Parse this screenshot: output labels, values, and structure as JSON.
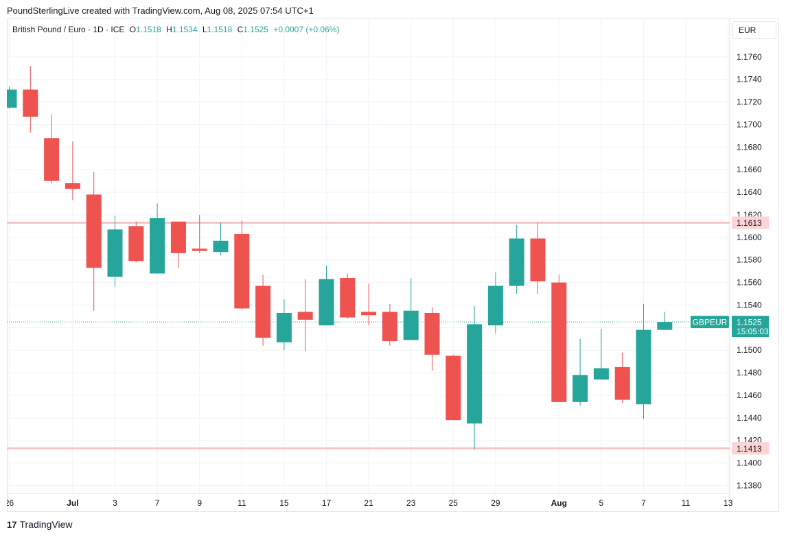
{
  "header": {
    "attribution": "PoundSterlingLive created with TradingView.com, Aug 08, 2025 07:54 UTC+1"
  },
  "legend": {
    "symbol": "British Pound / Euro · 1D · ICE",
    "open_label": "O",
    "open": "1.1518",
    "high_label": "H",
    "high": "1.1534",
    "low_label": "L",
    "low": "1.1518",
    "close_label": "C",
    "close": "1.1525",
    "change": "+0.0007 (+0.06%)"
  },
  "currency": "EUR",
  "footer": {
    "logo_mark": "17",
    "logo_text": "TradingView"
  },
  "colors": {
    "up": "#26a69a",
    "down": "#ef5350",
    "level_line": "#f7c5c5",
    "level_label_bg": "#fcd4d4",
    "grid": "#f0f3fa"
  },
  "chart_data": {
    "type": "candlestick",
    "symbol": "GBPEUR",
    "ylim": [
      1.138,
      1.178
    ],
    "y_ticks": [
      "1.1380",
      "1.1400",
      "1.1420",
      "1.1440",
      "1.1460",
      "1.1480",
      "1.1500",
      "1.1520",
      "1.1540",
      "1.1560",
      "1.1580",
      "1.1600",
      "1.1620",
      "1.1640",
      "1.1660",
      "1.1680",
      "1.1700",
      "1.1720",
      "1.1740",
      "1.1760"
    ],
    "x_ticks": [
      {
        "index": 0,
        "label": "26"
      },
      {
        "index": 3,
        "label": "Jul"
      },
      {
        "index": 5,
        "label": "3"
      },
      {
        "index": 7,
        "label": "7"
      },
      {
        "index": 9,
        "label": "9"
      },
      {
        "index": 11,
        "label": "11"
      },
      {
        "index": 13,
        "label": "15"
      },
      {
        "index": 15,
        "label": "17"
      },
      {
        "index": 17,
        "label": "21"
      },
      {
        "index": 19,
        "label": "23"
      },
      {
        "index": 21,
        "label": "25"
      },
      {
        "index": 23,
        "label": "29"
      },
      {
        "index": 26,
        "label": "Aug"
      },
      {
        "index": 28,
        "label": "5"
      },
      {
        "index": 30,
        "label": "7"
      },
      {
        "index": 32,
        "label": "11"
      },
      {
        "index": 34,
        "label": "13"
      }
    ],
    "candles": [
      {
        "open": 1.1715,
        "high": 1.1734,
        "low": 1.1714,
        "close": 1.1731
      },
      {
        "open": 1.1731,
        "high": 1.1752,
        "low": 1.1693,
        "close": 1.1707
      },
      {
        "open": 1.1688,
        "high": 1.1709,
        "low": 1.1648,
        "close": 1.165
      },
      {
        "open": 1.1648,
        "high": 1.1685,
        "low": 1.1633,
        "close": 1.1643
      },
      {
        "open": 1.1638,
        "high": 1.1658,
        "low": 1.1535,
        "close": 1.1573
      },
      {
        "open": 1.1565,
        "high": 1.1619,
        "low": 1.1556,
        "close": 1.1607
      },
      {
        "open": 1.161,
        "high": 1.1614,
        "low": 1.1578,
        "close": 1.1579
      },
      {
        "open": 1.1568,
        "high": 1.163,
        "low": 1.1568,
        "close": 1.1617
      },
      {
        "open": 1.1614,
        "high": 1.1614,
        "low": 1.1573,
        "close": 1.1586
      },
      {
        "open": 1.159,
        "high": 1.162,
        "low": 1.1586,
        "close": 1.1588
      },
      {
        "open": 1.1587,
        "high": 1.1613,
        "low": 1.1584,
        "close": 1.1597
      },
      {
        "open": 1.1603,
        "high": 1.1615,
        "low": 1.1536,
        "close": 1.1537
      },
      {
        "open": 1.1557,
        "high": 1.1567,
        "low": 1.1504,
        "close": 1.1511
      },
      {
        "open": 1.1507,
        "high": 1.1545,
        "low": 1.15,
        "close": 1.1533
      },
      {
        "open": 1.1534,
        "high": 1.1563,
        "low": 1.1499,
        "close": 1.1527
      },
      {
        "open": 1.1522,
        "high": 1.1575,
        "low": 1.1522,
        "close": 1.1563
      },
      {
        "open": 1.1564,
        "high": 1.1568,
        "low": 1.1528,
        "close": 1.1529
      },
      {
        "open": 1.1534,
        "high": 1.1559,
        "low": 1.1522,
        "close": 1.1531
      },
      {
        "open": 1.1534,
        "high": 1.1541,
        "low": 1.1504,
        "close": 1.1508
      },
      {
        "open": 1.1509,
        "high": 1.1564,
        "low": 1.1509,
        "close": 1.1535
      },
      {
        "open": 1.1533,
        "high": 1.1538,
        "low": 1.1482,
        "close": 1.1496
      },
      {
        "open": 1.1495,
        "high": 1.1496,
        "low": 1.1438,
        "close": 1.1438
      },
      {
        "open": 1.1435,
        "high": 1.1539,
        "low": 1.1412,
        "close": 1.1523
      },
      {
        "open": 1.1522,
        "high": 1.1569,
        "low": 1.1515,
        "close": 1.1557
      },
      {
        "open": 1.1557,
        "high": 1.1611,
        "low": 1.155,
        "close": 1.1599
      },
      {
        "open": 1.1599,
        "high": 1.1613,
        "low": 1.155,
        "close": 1.1561
      },
      {
        "open": 1.156,
        "high": 1.1567,
        "low": 1.1454,
        "close": 1.1454
      },
      {
        "open": 1.1454,
        "high": 1.151,
        "low": 1.1451,
        "close": 1.1478
      },
      {
        "open": 1.1474,
        "high": 1.1519,
        "low": 1.1474,
        "close": 1.1484
      },
      {
        "open": 1.1485,
        "high": 1.1498,
        "low": 1.1453,
        "close": 1.1456
      },
      {
        "open": 1.1452,
        "high": 1.1541,
        "low": 1.1439,
        "close": 1.1518
      },
      {
        "open": 1.1518,
        "high": 1.1534,
        "low": 1.1518,
        "close": 1.1525
      }
    ],
    "levels": [
      {
        "value": 1.1613,
        "label": "1.1613"
      },
      {
        "value": 1.1413,
        "label": "1.1413"
      }
    ],
    "last_price": {
      "value": 1.1525,
      "label": "1.1525",
      "countdown": "15:05:03",
      "symbol_tag": "GBPEUR"
    }
  }
}
